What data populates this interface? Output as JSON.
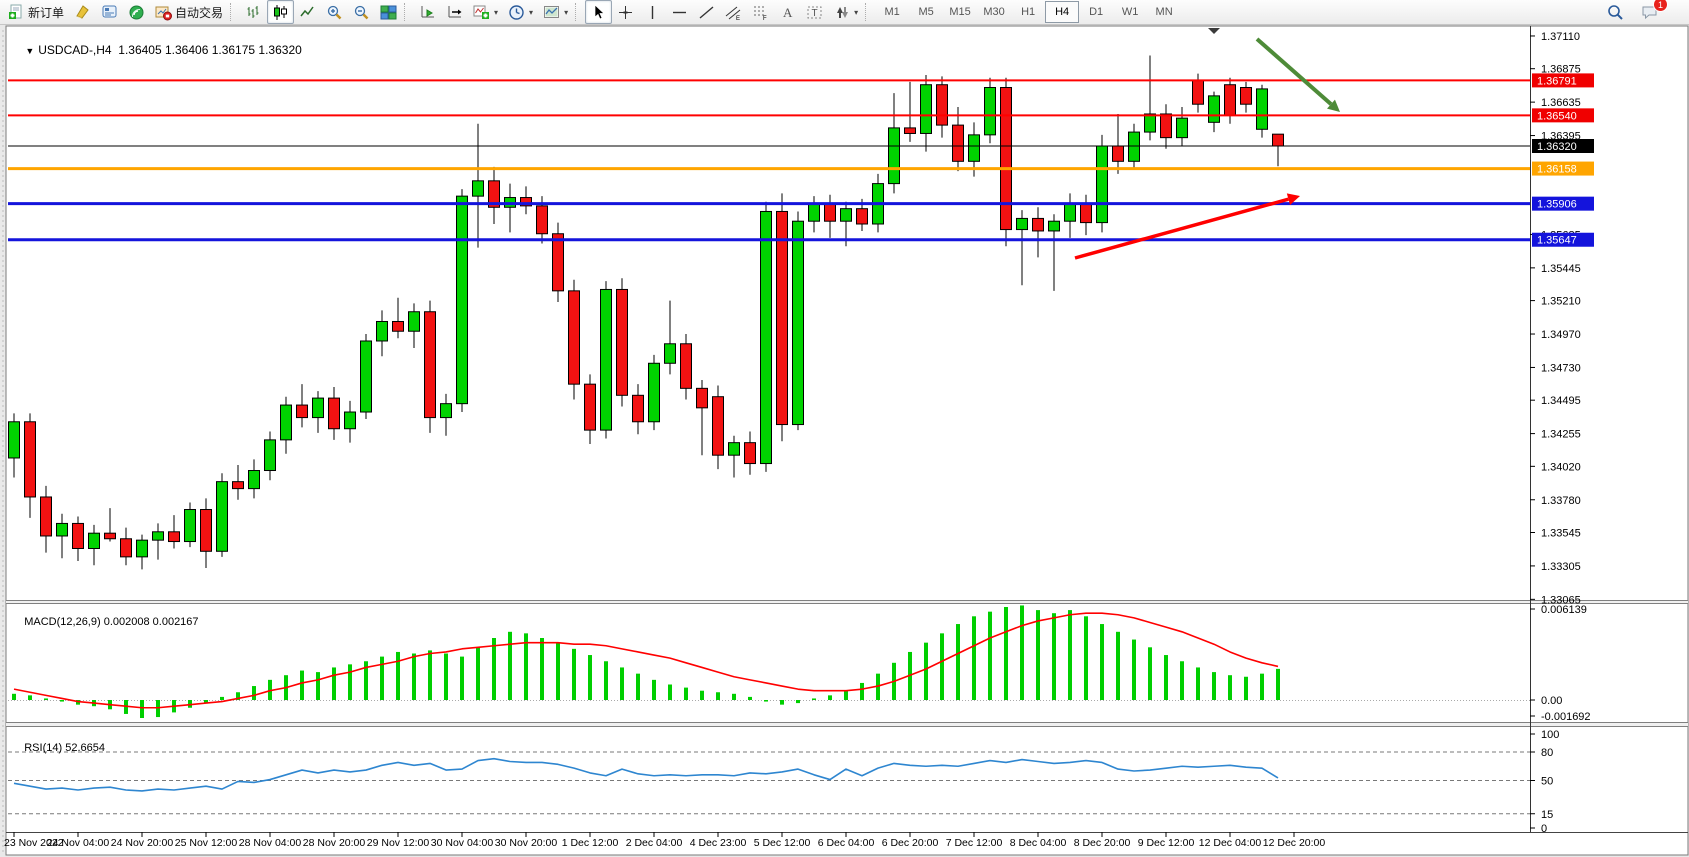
{
  "toolbar": {
    "new_order_label": "新订单",
    "autotrade_label": "自动交易",
    "buttons": [
      {
        "name": "new-order",
        "icon": "new-order-icon",
        "label_key": "new_order_label",
        "dropdown": false
      },
      {
        "name": "styler",
        "icon": "highlighter-icon"
      },
      {
        "name": "terminal",
        "icon": "terminal-icon"
      },
      {
        "name": "signals",
        "icon": "signal-icon"
      },
      {
        "name": "autotrading",
        "icon": "autotrade-icon",
        "label_key": "autotrade_label"
      },
      {
        "type": "sep"
      },
      {
        "name": "bars-chart",
        "icon": "bar-chart-icon"
      },
      {
        "name": "candles-chart",
        "icon": "candlestick-icon",
        "pressed": true
      },
      {
        "name": "line-chart",
        "icon": "line-chart-icon"
      },
      {
        "name": "zoom-in",
        "icon": "zoom-in-icon"
      },
      {
        "name": "zoom-out",
        "icon": "zoom-out-icon"
      },
      {
        "name": "tile-windows",
        "icon": "tile-windows-icon"
      },
      {
        "type": "sep"
      },
      {
        "name": "auto-scroll",
        "icon": "auto-scroll-icon"
      },
      {
        "name": "chart-shift",
        "icon": "chart-shift-icon"
      },
      {
        "name": "indicators",
        "icon": "add-indicator-icon",
        "dropdown": true
      },
      {
        "name": "periods",
        "icon": "clock-icon",
        "dropdown": true
      },
      {
        "name": "templates",
        "icon": "template-icon",
        "dropdown": true
      },
      {
        "type": "sep"
      },
      {
        "name": "cursor",
        "icon": "cursor-icon",
        "pressed": true
      },
      {
        "name": "crosshair",
        "icon": "crosshair-icon"
      },
      {
        "name": "vertical-line",
        "icon": "vertical-line-icon"
      },
      {
        "name": "horizontal-line",
        "icon": "horizontal-line-icon"
      },
      {
        "name": "trendline",
        "icon": "trendline-icon"
      },
      {
        "name": "channel",
        "icon": "channel-icon"
      },
      {
        "name": "fibonacci",
        "icon": "fibonacci-icon"
      },
      {
        "name": "text",
        "icon": "text-icon"
      },
      {
        "name": "text-label",
        "icon": "text-label-icon"
      },
      {
        "name": "arrows",
        "icon": "arrows-icon",
        "dropdown": true
      },
      {
        "type": "sep"
      }
    ],
    "timeframes": [
      "M1",
      "M5",
      "M15",
      "M30",
      "H1",
      "H4",
      "D1",
      "W1",
      "MN"
    ],
    "active_timeframe": "H4",
    "right_icons": [
      {
        "name": "search",
        "icon": "search-icon"
      },
      {
        "name": "chat",
        "icon": "chat-icon",
        "badge": "1"
      }
    ]
  },
  "chart_header": {
    "collapse_icon": "▼",
    "symbol": "USDCAD-,H4",
    "ohlc": "1.36405 1.36406 1.36175 1.36320"
  },
  "indicators": {
    "macd": {
      "label": "MACD(12,26,9)",
      "values": "0.002008 0.002167"
    },
    "rsi": {
      "label": "RSI(14)",
      "value": "52.6654"
    }
  },
  "colors": {
    "candle_up": "#00d300",
    "candle_down": "#f21212",
    "candle_outline": "#000000",
    "macd_hist": "#00cf00",
    "macd_signal": "#ff0000",
    "rsi_line": "#2e86d0",
    "arrow_green": "#4e8b38",
    "arrow_red": "#ff0000",
    "badge_red": "#f00000",
    "badge_black": "#000000",
    "badge_orange": "#ffa500",
    "badge_blue": "#1414dc"
  },
  "chart_data": [
    {
      "type": "candlestick",
      "title": "USDCAD- H4",
      "price_axis_ticks": [
        "1.37110",
        "1.36875",
        "1.36635",
        "1.36395",
        "1.35685",
        "1.35445",
        "1.35210",
        "1.34970",
        "1.34730",
        "1.34495",
        "1.34255",
        "1.34020",
        "1.33780",
        "1.33545",
        "1.33305",
        "1.33065"
      ],
      "x_labels": [
        "23 Nov 2022",
        "24 Nov 04:00",
        "24 Nov 20:00",
        "25 Nov 12:00",
        "28 Nov 04:00",
        "28 Nov 20:00",
        "29 Nov 12:00",
        "30 Nov 04:00",
        "30 Nov 20:00",
        "1 Dec 12:00",
        "2 Dec 04:00",
        "4 Dec 23:00",
        "5 Dec 12:00",
        "6 Dec 04:00",
        "6 Dec 20:00",
        "7 Dec 12:00",
        "8 Dec 04:00",
        "8 Dec 20:00",
        "9 Dec 12:00",
        "12 Dec 04:00",
        "12 Dec 20:00"
      ],
      "hlines": [
        {
          "price": 1.36791,
          "label": "1.36791",
          "color": "#ff0000",
          "width": 2,
          "badge": "badge_red"
        },
        {
          "price": 1.3654,
          "label": "1.36540",
          "color": "#ff0000",
          "width": 2,
          "badge": "badge_red"
        },
        {
          "price": 1.3632,
          "label": "1.36320",
          "color": "#000000",
          "width": 1,
          "badge": "badge_black"
        },
        {
          "price": 1.36158,
          "label": "1.36158",
          "color": "#ffa500",
          "width": 3,
          "badge": "badge_orange"
        },
        {
          "price": 1.35906,
          "label": "1.35906",
          "color": "#1414dc",
          "width": 3,
          "badge": "badge_blue"
        },
        {
          "price": 1.35647,
          "label": "1.35647",
          "color": "#1414dc",
          "width": 3,
          "badge": "badge_blue"
        }
      ],
      "arrows": [
        {
          "name": "down-trend-arrow",
          "color": "#4e8b38",
          "from": [
            1257,
            39
          ],
          "to": [
            1340,
            112
          ],
          "width": 4
        },
        {
          "name": "up-trend-arrow",
          "color": "#ff0000",
          "from": [
            1075,
            258
          ],
          "to": [
            1300,
            196
          ],
          "width": 3.5
        }
      ],
      "candles": [
        [
          1.3408,
          1.344,
          1.3394,
          1.3434
        ],
        [
          1.3434,
          1.344,
          1.3365,
          1.338
        ],
        [
          1.338,
          1.3388,
          1.334,
          1.3352
        ],
        [
          1.3352,
          1.3368,
          1.3336,
          1.3361
        ],
        [
          1.3361,
          1.3366,
          1.3334,
          1.3343
        ],
        [
          1.3343,
          1.336,
          1.3331,
          1.3354
        ],
        [
          1.3354,
          1.3372,
          1.3348,
          1.335
        ],
        [
          1.335,
          1.3358,
          1.3331,
          1.3337
        ],
        [
          1.3337,
          1.3353,
          1.3328,
          1.3349
        ],
        [
          1.3349,
          1.3361,
          1.3335,
          1.3355
        ],
        [
          1.3355,
          1.3367,
          1.3343,
          1.3348
        ],
        [
          1.3348,
          1.3376,
          1.3344,
          1.3371
        ],
        [
          1.3371,
          1.3379,
          1.3329,
          1.3341
        ],
        [
          1.3341,
          1.3397,
          1.3337,
          1.3391
        ],
        [
          1.3391,
          1.3403,
          1.3378,
          1.3386
        ],
        [
          1.3386,
          1.3407,
          1.3379,
          1.3399
        ],
        [
          1.3399,
          1.3427,
          1.3392,
          1.3421
        ],
        [
          1.3421,
          1.3452,
          1.3411,
          1.3446
        ],
        [
          1.3446,
          1.3461,
          1.343,
          1.3437
        ],
        [
          1.3437,
          1.3456,
          1.3426,
          1.3451
        ],
        [
          1.3451,
          1.3459,
          1.3421,
          1.3429
        ],
        [
          1.3429,
          1.3449,
          1.3419,
          1.3441
        ],
        [
          1.3441,
          1.3497,
          1.3436,
          1.3492
        ],
        [
          1.3492,
          1.3514,
          1.3481,
          1.3506
        ],
        [
          1.3506,
          1.3523,
          1.3494,
          1.3499
        ],
        [
          1.3499,
          1.3519,
          1.3487,
          1.3513
        ],
        [
          1.3513,
          1.3521,
          1.3426,
          1.3437
        ],
        [
          1.3437,
          1.3454,
          1.3424,
          1.3447
        ],
        [
          1.3447,
          1.3601,
          1.3441,
          1.3596
        ],
        [
          1.3596,
          1.3648,
          1.3559,
          1.3607
        ],
        [
          1.3607,
          1.3617,
          1.3576,
          1.3588
        ],
        [
          1.3588,
          1.3605,
          1.357,
          1.3595
        ],
        [
          1.3595,
          1.3603,
          1.3583,
          1.3589
        ],
        [
          1.3589,
          1.3596,
          1.3562,
          1.3569
        ],
        [
          1.3569,
          1.3577,
          1.352,
          1.3528
        ],
        [
          1.3528,
          1.3536,
          1.345,
          1.3461
        ],
        [
          1.3461,
          1.3468,
          1.3418,
          1.3428
        ],
        [
          1.3428,
          1.3535,
          1.3422,
          1.3529
        ],
        [
          1.3529,
          1.3537,
          1.3445,
          1.3453
        ],
        [
          1.3453,
          1.3461,
          1.3425,
          1.3434
        ],
        [
          1.3434,
          1.3482,
          1.3428,
          1.3476
        ],
        [
          1.3476,
          1.3521,
          1.3468,
          1.349
        ],
        [
          1.349,
          1.3497,
          1.345,
          1.3458
        ],
        [
          1.3458,
          1.3464,
          1.341,
          1.3444
        ],
        [
          1.3452,
          1.346,
          1.34,
          1.341
        ],
        [
          1.341,
          1.3424,
          1.3394,
          1.3419
        ],
        [
          1.3419,
          1.3427,
          1.3396,
          1.3404
        ],
        [
          1.3404,
          1.3592,
          1.3398,
          1.3585
        ],
        [
          1.3585,
          1.3598,
          1.342,
          1.3432
        ],
        [
          1.3432,
          1.3585,
          1.3428,
          1.3578
        ],
        [
          1.3578,
          1.3596,
          1.357,
          1.359
        ],
        [
          1.359,
          1.3597,
          1.3566,
          1.3578
        ],
        [
          1.3578,
          1.3592,
          1.356,
          1.3587
        ],
        [
          1.3587,
          1.3594,
          1.3571,
          1.3576
        ],
        [
          1.3576,
          1.3612,
          1.357,
          1.3605
        ],
        [
          1.3605,
          1.367,
          1.3598,
          1.3645
        ],
        [
          1.3645,
          1.3678,
          1.3635,
          1.3641
        ],
        [
          1.3641,
          1.3683,
          1.3628,
          1.3676
        ],
        [
          1.3676,
          1.3682,
          1.3638,
          1.3647
        ],
        [
          1.3647,
          1.366,
          1.3614,
          1.3621
        ],
        [
          1.3621,
          1.3649,
          1.361,
          1.364
        ],
        [
          1.364,
          1.3681,
          1.3634,
          1.3674
        ],
        [
          1.3674,
          1.3681,
          1.356,
          1.3572
        ],
        [
          1.3572,
          1.3586,
          1.3532,
          1.358
        ],
        [
          1.358,
          1.3588,
          1.3552,
          1.3571
        ],
        [
          1.3571,
          1.3583,
          1.3528,
          1.3578
        ],
        [
          1.3578,
          1.3598,
          1.3566,
          1.359
        ],
        [
          1.359,
          1.3597,
          1.3568,
          1.3577
        ],
        [
          1.3577,
          1.364,
          1.357,
          1.3632
        ],
        [
          1.3632,
          1.3655,
          1.3612,
          1.3621
        ],
        [
          1.3621,
          1.3648,
          1.3615,
          1.3642
        ],
        [
          1.3642,
          1.3697,
          1.3636,
          1.3655
        ],
        [
          1.3655,
          1.3662,
          1.363,
          1.3638
        ],
        [
          1.3638,
          1.366,
          1.3632,
          1.3652
        ],
        [
          1.3679,
          1.3684,
          1.3656,
          1.3662
        ],
        [
          1.3649,
          1.3671,
          1.3642,
          1.3668
        ],
        [
          1.3676,
          1.3681,
          1.3648,
          1.3654
        ],
        [
          1.3674,
          1.3678,
          1.3656,
          1.3662
        ],
        [
          1.3644,
          1.3676,
          1.3638,
          1.3673
        ],
        [
          1.36405,
          1.36406,
          1.36175,
          1.3632
        ]
      ]
    },
    {
      "type": "bar",
      "title": "MACD(12,26,9)",
      "axis_labels": [
        "0.006139",
        "0.00",
        "-0.001692"
      ],
      "axis_values": [
        0.006139,
        0.0,
        -0.001692
      ],
      "histogram": [
        0.0004,
        0.0003,
        0.0001,
        -0.0001,
        -0.0003,
        -0.0004,
        -0.0006,
        -0.0009,
        -0.0012,
        -0.0011,
        -0.0008,
        -0.0005,
        -0.0002,
        0.0002,
        0.0005,
        0.0009,
        0.0013,
        0.0016,
        0.0019,
        0.0018,
        0.0021,
        0.0023,
        0.0025,
        0.0028,
        0.0031,
        0.003,
        0.0032,
        0.003,
        0.0028,
        0.0034,
        0.004,
        0.0044,
        0.0043,
        0.004,
        0.0037,
        0.0033,
        0.0029,
        0.0025,
        0.0021,
        0.0017,
        0.0013,
        0.001,
        0.0008,
        0.0006,
        0.0005,
        0.0004,
        0.0002,
        -0.0001,
        -0.0003,
        -0.0002,
        0.0001,
        0.0003,
        0.0006,
        0.0011,
        0.0017,
        0.0024,
        0.0031,
        0.0037,
        0.0043,
        0.0049,
        0.0054,
        0.0057,
        0.006,
        0.0061,
        0.0058,
        0.0056,
        0.0058,
        0.0054,
        0.0049,
        0.0044,
        0.0039,
        0.0034,
        0.0029,
        0.0025,
        0.0021,
        0.0018,
        0.0016,
        0.0015,
        0.0017,
        0.002008
      ],
      "signal": [
        0.0007,
        0.0005,
        0.0003,
        0.0001,
        -0.0001,
        -0.0002,
        -0.0003,
        -0.0004,
        -0.0005,
        -0.0005,
        -0.0004,
        -0.0003,
        -0.0002,
        -0.0001,
        0.0001,
        0.0003,
        0.0006,
        0.0008,
        0.0011,
        0.0013,
        0.0016,
        0.0018,
        0.0021,
        0.0023,
        0.0025,
        0.0028,
        0.003,
        0.0031,
        0.0033,
        0.0034,
        0.0035,
        0.0036,
        0.0037,
        0.0037,
        0.0037,
        0.0036,
        0.0036,
        0.0035,
        0.0033,
        0.0031,
        0.0029,
        0.0027,
        0.0024,
        0.0021,
        0.0018,
        0.0015,
        0.0013,
        0.0011,
        0.0009,
        0.0007,
        0.0006,
        0.0006,
        0.0006,
        0.0007,
        0.0009,
        0.0012,
        0.0016,
        0.002,
        0.0025,
        0.003,
        0.0035,
        0.004,
        0.0044,
        0.0048,
        0.0051,
        0.0053,
        0.0055,
        0.0056,
        0.0056,
        0.0055,
        0.0053,
        0.005,
        0.0047,
        0.0044,
        0.004,
        0.0036,
        0.0031,
        0.0027,
        0.0024,
        0.002167
      ]
    },
    {
      "type": "line",
      "title": "RSI(14)",
      "axis_labels": [
        "100",
        "80",
        "50",
        "15",
        "0"
      ],
      "levels": [
        80,
        50,
        15
      ],
      "ylim": [
        0,
        100
      ],
      "values": [
        47,
        44,
        41,
        42,
        40,
        42,
        43,
        40,
        39,
        41,
        40,
        42,
        44,
        41,
        49,
        48,
        51,
        56,
        61,
        58,
        61,
        59,
        61,
        66,
        69,
        66,
        68,
        61,
        62,
        71,
        73,
        70,
        69,
        69,
        67,
        63,
        58,
        55,
        62,
        57,
        55,
        56,
        55,
        56,
        56,
        55,
        58,
        57,
        59,
        62,
        56,
        51,
        62,
        55,
        63,
        68,
        66,
        65,
        66,
        65,
        68,
        71,
        69,
        72,
        70,
        68,
        69,
        71,
        69,
        62,
        60,
        61,
        63,
        65,
        64,
        65,
        66,
        64,
        63,
        52.6654
      ]
    }
  ]
}
